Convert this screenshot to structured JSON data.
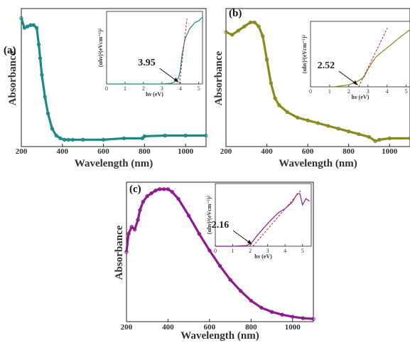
{
  "chart_data": [
    {
      "panel": "(a)",
      "type": "scatter",
      "color": "#1a8a86",
      "xlabel": "Wavelength (nm)",
      "ylabel": "Absorbance",
      "xlim": [
        200,
        1100
      ],
      "ylim": [
        0,
        1
      ],
      "xticks": [
        200,
        400,
        600,
        800,
        1000
      ],
      "x": [
        200,
        215,
        230,
        245,
        260,
        275,
        285,
        292,
        300,
        315,
        330,
        350,
        370,
        390,
        410,
        430,
        450,
        500,
        600,
        700,
        790,
        800,
        900,
        1000,
        1100
      ],
      "y": [
        0.93,
        0.86,
        0.87,
        0.88,
        0.88,
        0.86,
        0.74,
        0.64,
        0.52,
        0.36,
        0.24,
        0.13,
        0.08,
        0.06,
        0.05,
        0.05,
        0.05,
        0.05,
        0.05,
        0.06,
        0.06,
        0.075,
        0.08,
        0.08,
        0.08
      ],
      "inset": {
        "xlabel": "hν (eV)",
        "ylabel": "(αhν)²(eVcm⁻¹)²",
        "xlim": [
          0,
          5.2
        ],
        "xticks": [
          0,
          1,
          2,
          3,
          4,
          5
        ],
        "ylim": [
          0,
          1
        ],
        "x": [
          0,
          1,
          2,
          3,
          3.5,
          3.7,
          3.9,
          4.0,
          4.1,
          4.25,
          4.5,
          4.8,
          5.0,
          5.1,
          5.2
        ],
        "y": [
          0,
          0,
          0,
          0,
          0.01,
          0.03,
          0.08,
          0.2,
          0.42,
          0.62,
          0.76,
          0.85,
          0.87,
          0.9,
          0.92
        ],
        "band_gap": 3.95,
        "band_gap_label": "3.95"
      }
    },
    {
      "panel": "(b)",
      "type": "scatter",
      "color": "#8a8a1e",
      "xlabel": "Wavelength (nm)",
      "ylabel": "Absorbance",
      "xlim": [
        200,
        1100
      ],
      "ylim": [
        0,
        1
      ],
      "xticks": [
        200,
        400,
        600,
        800,
        1000
      ],
      "x": [
        200,
        230,
        260,
        290,
        320,
        340,
        360,
        380,
        400,
        420,
        440,
        460,
        500,
        550,
        600,
        650,
        700,
        750,
        800,
        850,
        900,
        930,
        950,
        1000,
        1100
      ],
      "y": [
        0.83,
        0.81,
        0.84,
        0.87,
        0.9,
        0.9,
        0.87,
        0.8,
        0.63,
        0.46,
        0.35,
        0.3,
        0.25,
        0.21,
        0.19,
        0.17,
        0.15,
        0.13,
        0.11,
        0.09,
        0.07,
        0.04,
        0.05,
        0.06,
        0.06
      ],
      "inset": {
        "xlabel": "hν (eV)",
        "ylabel": "(αhν)²(eVcm⁻¹)²",
        "xlim": [
          0,
          5.2
        ],
        "xticks": [
          0,
          1,
          2,
          3,
          4,
          5
        ],
        "ylim": [
          0,
          1
        ],
        "x": [
          1.2,
          2.0,
          2.5,
          2.8,
          3.0,
          3.4,
          3.8,
          4.2,
          4.6,
          5.0,
          5.2
        ],
        "y": [
          0,
          0.03,
          0.09,
          0.15,
          0.27,
          0.45,
          0.55,
          0.64,
          0.74,
          0.83,
          0.87
        ],
        "band_gap": 2.52,
        "band_gap_label": "2.52"
      }
    },
    {
      "panel": "(c)",
      "type": "scatter",
      "color": "#8e1a8e",
      "xlabel": "Wavelength (nm)",
      "ylabel": "Absorbance",
      "xlim": [
        200,
        1100
      ],
      "ylim": [
        0,
        1
      ],
      "xticks": [
        200,
        400,
        600,
        800,
        1000
      ],
      "x": [
        200,
        210,
        225,
        240,
        255,
        265,
        280,
        300,
        320,
        340,
        360,
        380,
        400,
        420,
        450,
        500,
        550,
        600,
        650,
        700,
        750,
        800,
        850,
        900,
        950,
        1000,
        1050,
        1100
      ],
      "y": [
        0.5,
        0.63,
        0.68,
        0.66,
        0.73,
        0.8,
        0.86,
        0.9,
        0.92,
        0.94,
        0.95,
        0.95,
        0.95,
        0.93,
        0.88,
        0.76,
        0.63,
        0.51,
        0.4,
        0.3,
        0.22,
        0.15,
        0.1,
        0.07,
        0.05,
        0.035,
        0.025,
        0.02
      ],
      "inset": {
        "xlabel": "hν (eV)",
        "ylabel": "(αhν)²(eVcm⁻¹)²",
        "xlim": [
          0,
          5.5
        ],
        "xticks": [
          0,
          1,
          2,
          3,
          4,
          5
        ],
        "ylim": [
          0,
          1
        ],
        "x": [
          0,
          1,
          1.8,
          2.1,
          2.4,
          2.8,
          3.2,
          3.6,
          4.0,
          4.4,
          4.7,
          4.85,
          5.0,
          5.2,
          5.4
        ],
        "y": [
          0,
          0,
          0.01,
          0.06,
          0.17,
          0.3,
          0.42,
          0.53,
          0.6,
          0.7,
          0.84,
          0.84,
          0.66,
          0.76,
          0.72
        ],
        "band_gap": 2.16,
        "band_gap_label": "2.16"
      }
    }
  ]
}
